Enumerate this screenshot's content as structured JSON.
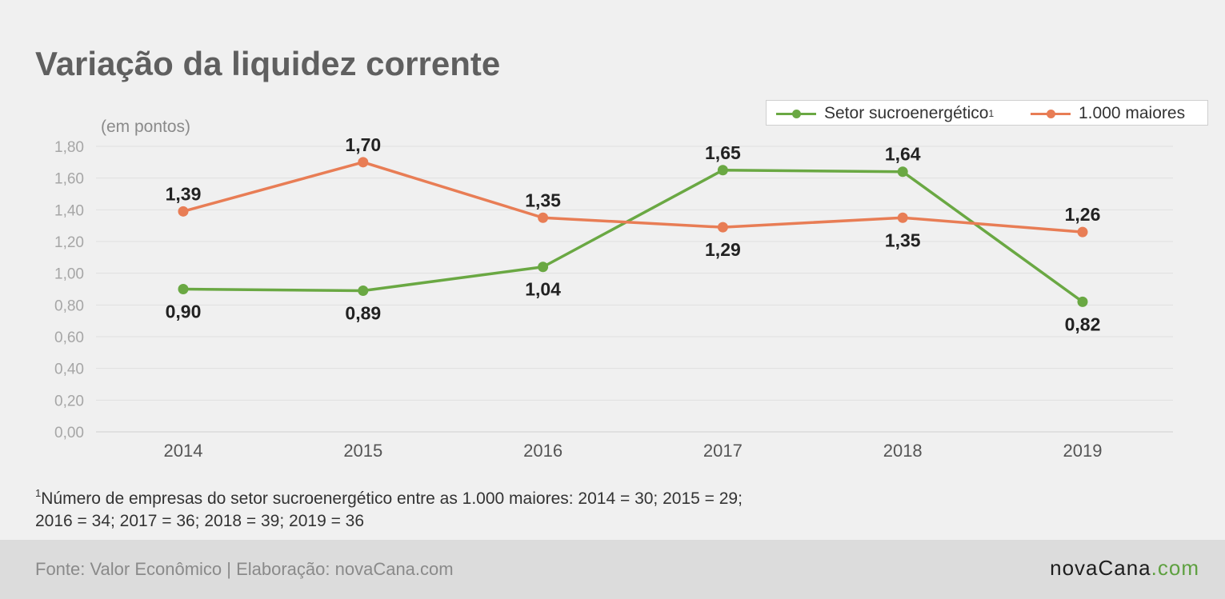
{
  "title": "Variação da liquidez corrente",
  "unit_label": "(em pontos)",
  "legend": [
    {
      "label": "Setor sucroenergético",
      "sup": "1",
      "color": "#6aa843"
    },
    {
      "label": "1.000 maiores",
      "sup": "",
      "color": "#e87d55"
    }
  ],
  "chart_data": {
    "type": "line",
    "title": "Variação da liquidez corrente",
    "ylabel": "(em pontos)",
    "xlabel": "",
    "x": [
      "2014",
      "2015",
      "2016",
      "2017",
      "2018",
      "2019"
    ],
    "ylim": [
      0,
      1.8
    ],
    "yticks": [
      "0,00",
      "0,20",
      "0,40",
      "0,60",
      "0,80",
      "1,00",
      "1,20",
      "1,40",
      "1,60",
      "1,80"
    ],
    "grid": true,
    "legend_position": "top-right",
    "series": [
      {
        "name": "Setor sucroenergético",
        "color": "#6aa843",
        "values": [
          0.9,
          0.89,
          1.04,
          1.65,
          1.64,
          0.82
        ],
        "labels": [
          "0,90",
          "0,89",
          "1,04",
          "1,65",
          "1,64",
          "0,82"
        ],
        "label_side": [
          "below",
          "below",
          "below",
          "above",
          "above",
          "below"
        ]
      },
      {
        "name": "1.000 maiores",
        "color": "#e87d55",
        "values": [
          1.39,
          1.7,
          1.35,
          1.29,
          1.35,
          1.26
        ],
        "labels": [
          "1,39",
          "1,70",
          "1,35",
          "1,29",
          "1,35",
          "1,26"
        ],
        "label_side": [
          "above",
          "above",
          "above",
          "below",
          "below",
          "above"
        ]
      }
    ]
  },
  "footnote": {
    "sup": "1",
    "line1": "Número de empresas do setor sucroenergético entre as 1.000 maiores: 2014 = 30; 2015 = 29;",
    "line2": "2016 = 34; 2017 = 36; 2018 = 39; 2019 = 36"
  },
  "footer": {
    "source": "Fonte: Valor Econômico | Elaboração: novaCana.com",
    "logo_main": "novaCana",
    "logo_suffix": ".com"
  }
}
